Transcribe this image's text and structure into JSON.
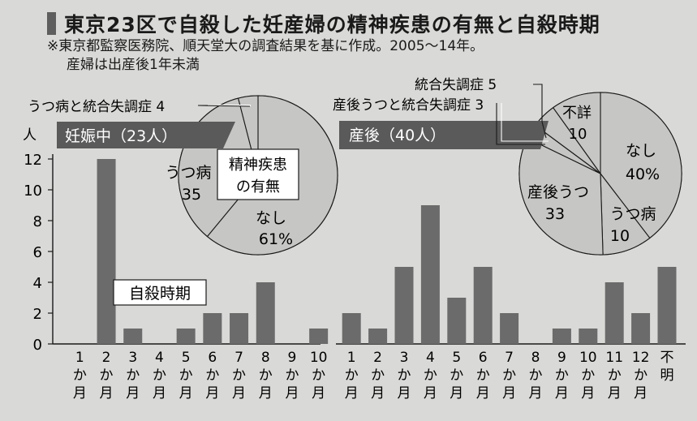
{
  "title": "東京23区で自殺した妊産婦の精神疾患の有無と自殺時期",
  "notes": [
    "※東京都監察医務院、順天堂大の調査結果を基に作成。2005～14年。",
    "産婦は出産後1年未満"
  ],
  "colors": {
    "bar": "#6b6b6b",
    "pie_fill": "#c6c6c4",
    "header": "#5a5a5a",
    "background": "#d9d9d7"
  },
  "chart_data": [
    {
      "type": "bar",
      "panel_label": "妊娠中（23人）",
      "inset_label": "自殺時期",
      "ylabel": "人",
      "ylim": [
        0,
        12
      ],
      "yticks": [
        "0",
        "2",
        "4",
        "6",
        "8",
        "10",
        "12"
      ],
      "categories": [
        "1か月",
        "2か月",
        "3か月",
        "4か月",
        "5か月",
        "6か月",
        "7か月",
        "8か月",
        "9か月",
        "10か月"
      ],
      "tick_labels": [
        [
          "1",
          "か",
          "月"
        ],
        [
          "2",
          "か",
          "月"
        ],
        [
          "3",
          "か",
          "月"
        ],
        [
          "4",
          "か",
          "月"
        ],
        [
          "5",
          "か",
          "月"
        ],
        [
          "6",
          "か",
          "月"
        ],
        [
          "7",
          "か",
          "月"
        ],
        [
          "8",
          "か",
          "月"
        ],
        [
          "9",
          "か",
          "月"
        ],
        [
          "10",
          "か",
          "月"
        ]
      ],
      "values": [
        0,
        12,
        1,
        0,
        1,
        2,
        2,
        4,
        0,
        1
      ],
      "grid": false
    },
    {
      "type": "bar",
      "panel_label": "産後（40人）",
      "ylim": [
        0,
        12
      ],
      "categories": [
        "1か月",
        "2か月",
        "3か月",
        "4か月",
        "5か月",
        "6か月",
        "7か月",
        "8か月",
        "9か月",
        "10か月",
        "11か月",
        "12か月",
        "不明"
      ],
      "tick_labels": [
        [
          "1",
          "か",
          "月"
        ],
        [
          "2",
          "か",
          "月"
        ],
        [
          "3",
          "か",
          "月"
        ],
        [
          "4",
          "か",
          "月"
        ],
        [
          "5",
          "か",
          "月"
        ],
        [
          "6",
          "か",
          "月"
        ],
        [
          "7",
          "か",
          "月"
        ],
        [
          "8",
          "か",
          "月"
        ],
        [
          "9",
          "か",
          "月"
        ],
        [
          "10",
          "か",
          "月"
        ],
        [
          "11",
          "か",
          "月"
        ],
        [
          "12",
          "か",
          "月"
        ],
        [
          "不",
          "明"
        ]
      ],
      "values": [
        2,
        1,
        5,
        9,
        3,
        5,
        2,
        0,
        1,
        1,
        4,
        2,
        5
      ],
      "grid": false
    },
    {
      "type": "pie",
      "center_label": [
        "精神疾患",
        "の有無"
      ],
      "slices": [
        {
          "label": "なし",
          "value": 61,
          "text": "なし",
          "value_text": "61%"
        },
        {
          "label": "うつ病",
          "value": 35,
          "text": "うつ病",
          "value_text": "35"
        },
        {
          "label": "うつ病と統合失調症",
          "value": 4,
          "text": "うつ病と統合失調症 4"
        }
      ]
    },
    {
      "type": "pie",
      "slices": [
        {
          "label": "なし",
          "value": 40,
          "text": "なし",
          "value_text": "40%"
        },
        {
          "label": "うつ病",
          "value": 10,
          "text": "うつ病",
          "value_text": "10"
        },
        {
          "label": "産後うつ",
          "value": 33,
          "text": "産後うつ",
          "value_text": "33"
        },
        {
          "label": "産後うつと統合失調症",
          "value": 3,
          "text": "産後うつと統合失調症 3"
        },
        {
          "label": "統合失調症",
          "value": 5,
          "text": "統合失調症 5"
        },
        {
          "label": "不詳",
          "value": 10,
          "text": "不詳",
          "value_text": "10"
        }
      ]
    }
  ]
}
